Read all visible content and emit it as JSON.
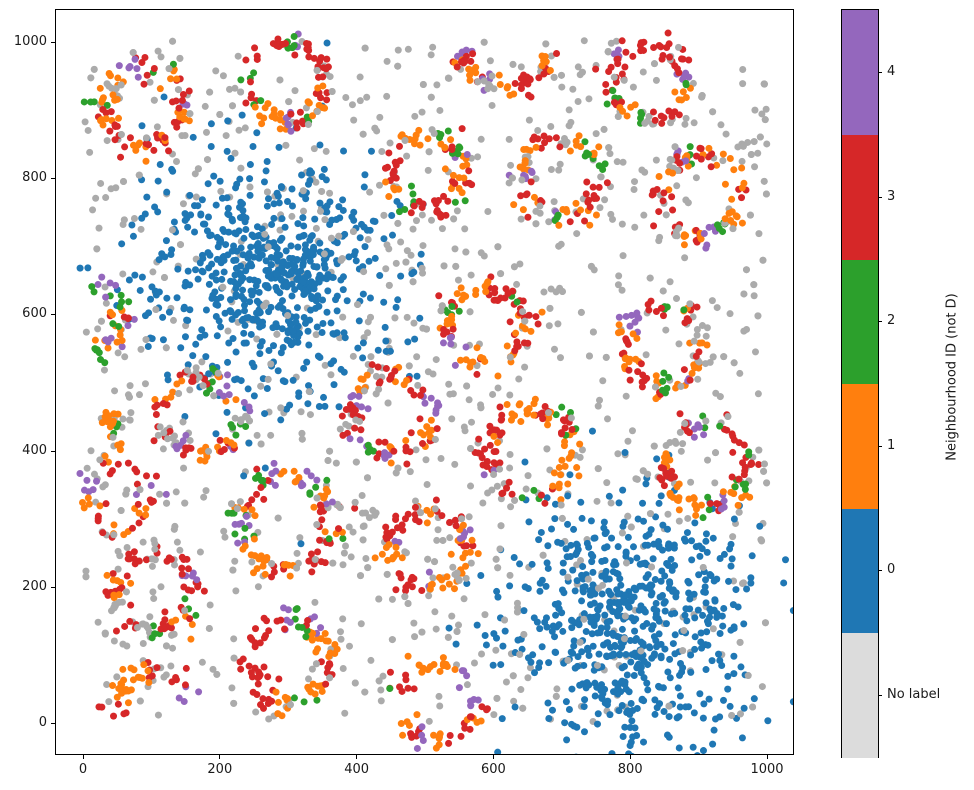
{
  "figure": {
    "background": "#ffffff"
  },
  "chart_data": {
    "type": "scatter",
    "title": "",
    "xlabel": "",
    "ylabel": "",
    "xlim": [
      -39.5,
      1038
    ],
    "ylim": [
      -45.5,
      1047
    ],
    "xticks": [
      0,
      200,
      400,
      600,
      800,
      1000
    ],
    "yticks": [
      0,
      200,
      400,
      600,
      800,
      1000
    ],
    "grid": false,
    "legend": "none",
    "marker_radius_px": 3.5,
    "class_colors": {
      "noise": "#ababab",
      "0": "#1f77b4",
      "1": "#ff7f0e",
      "2": "#2ca02c",
      "3": "#d62728",
      "4": "#9467bd"
    },
    "default_ring_mix": {
      "1": 0.36,
      "3": 0.38,
      "2": 0.09,
      "4": 0.09,
      "noise": 0.08
    },
    "noise": {
      "n": 920,
      "x_range": [
        2,
        1000
      ],
      "y_range": [
        0,
        1002
      ],
      "class": "noise",
      "overdraw_every": 3
    },
    "clusters": [
      {
        "kind": "blob",
        "cx": 268,
        "cy": 662,
        "sigma": 90,
        "n": 640,
        "class": "0"
      },
      {
        "kind": "blob",
        "cx": 788,
        "cy": 152,
        "sigma": 90,
        "n": 640,
        "class": "0"
      },
      {
        "kind": "ring",
        "cx": 88,
        "cy": 903,
        "r": 58,
        "n": 100
      },
      {
        "kind": "ring",
        "cx": 296,
        "cy": 940,
        "r": 56,
        "n": 95
      },
      {
        "kind": "ring",
        "cx": 826,
        "cy": 942,
        "r": 55,
        "n": 95
      },
      {
        "kind": "ring",
        "cx": 500,
        "cy": 812,
        "r": 55,
        "n": 90
      },
      {
        "kind": "ring",
        "cx": 698,
        "cy": 800,
        "r": 57,
        "n": 95
      },
      {
        "kind": "ring",
        "cx": 900,
        "cy": 775,
        "r": 60,
        "n": 100
      },
      {
        "kind": "ring",
        "cx": 590,
        "cy": 585,
        "r": 57,
        "n": 95,
        "mix": {
          "1": 0.33,
          "3": 0.36,
          "2": 0.09,
          "4": 0.14,
          "noise": 0.08
        }
      },
      {
        "kind": "ring",
        "cx": 850,
        "cy": 552,
        "r": 58,
        "n": 100
      },
      {
        "kind": "ring",
        "cx": 170,
        "cy": 452,
        "r": 58,
        "n": 100
      },
      {
        "kind": "ring",
        "cx": 300,
        "cy": 293,
        "r": 70,
        "n": 120,
        "rs": 10
      },
      {
        "kind": "ring",
        "cx": 652,
        "cy": 398,
        "r": 63,
        "n": 105
      },
      {
        "kind": "ring",
        "cx": 910,
        "cy": 377,
        "r": 62,
        "n": 100
      },
      {
        "kind": "ring",
        "cx": 103,
        "cy": 196,
        "r": 58,
        "n": 100
      },
      {
        "kind": "ring",
        "cx": 300,
        "cy": 90,
        "r": 60,
        "n": 100
      },
      {
        "kind": "ring",
        "cx": 505,
        "cy": 255,
        "r": 58,
        "n": 95
      },
      {
        "kind": "ring",
        "cx": 450,
        "cy": 452,
        "r": 60,
        "n": 100,
        "mix": {
          "1": 0.34,
          "3": 0.3,
          "2": 0.08,
          "4": 0.2,
          "noise": 0.08
        }
      },
      {
        "kind": "ring",
        "cx": 618,
        "cy": 1000,
        "r": 66,
        "n": 65,
        "arc": [
          190,
          350
        ]
      },
      {
        "kind": "ring",
        "cx": 515,
        "cy": 28,
        "r": 58,
        "n": 70,
        "arc": [
          -150,
          170
        ]
      },
      {
        "kind": "ring",
        "cx": 100,
        "cy": 22,
        "r": 55,
        "n": 48,
        "arc": [
          10,
          200
        ]
      },
      {
        "kind": "ring",
        "cx": 2,
        "cy": 598,
        "r": 56,
        "n": 42,
        "arc": [
          -80,
          80
        ],
        "mix": {
          "1": 0.28,
          "3": 0.22,
          "2": 0.28,
          "4": 0.12,
          "noise": 0.1
        }
      },
      {
        "kind": "ring",
        "cx": 10,
        "cy": 420,
        "r": 40,
        "n": 20,
        "arc": [
          -55,
          60
        ],
        "mix": {
          "1": 0.62,
          "3": 0.2,
          "2": 0.04,
          "4": 0.08,
          "noise": 0.06
        }
      },
      {
        "kind": "ring",
        "cx": 48,
        "cy": 330,
        "r": 46,
        "n": 50,
        "rs": 12
      }
    ],
    "colorbar": {
      "label": "Neighbourhood ID (not D)",
      "bands_bottom_to_top": [
        {
          "label": "No label",
          "color": "#dcdcdc"
        },
        {
          "label": "0",
          "color": "#1f77b4"
        },
        {
          "label": "1",
          "color": "#ff7f0e"
        },
        {
          "label": "2",
          "color": "#2ca02c"
        },
        {
          "label": "3",
          "color": "#d62728"
        },
        {
          "label": "4",
          "color": "#9467bd"
        }
      ]
    }
  }
}
